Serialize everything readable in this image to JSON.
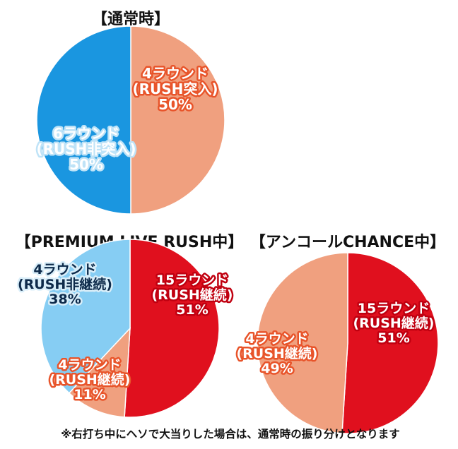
{
  "chart_data": [
    {
      "type": "pie",
      "title": "【通常時】",
      "slices": [
        {
          "lines": [
            "4ラウンド",
            "(RUSH突入)",
            "50%"
          ],
          "value": 50,
          "color": "#f0a07f",
          "outline": "#e8542a"
        },
        {
          "lines": [
            "6ラウンド",
            "(RUSH非突入)",
            "50%"
          ],
          "value": 50,
          "color": "#1a96e0",
          "outline": "#bfe3f7"
        }
      ]
    },
    {
      "type": "pie",
      "title": "【PREMIUM LIVE RUSH中】",
      "slices": [
        {
          "lines": [
            "15ラウンド",
            "(RUSH継続)",
            "51%"
          ],
          "value": 51,
          "color": "#e0101e",
          "outline": "#c00010"
        },
        {
          "lines": [
            "4ラウンド",
            "(RUSH継続)",
            "11%"
          ],
          "value": 11,
          "color": "#f0a07f",
          "outline": "#e8542a"
        },
        {
          "lines": [
            "4ラウンド",
            "(RUSH非継続)",
            "38%"
          ],
          "value": 38,
          "color": "#86cdf3",
          "outline": "#d9eef9"
        }
      ]
    },
    {
      "type": "pie",
      "title": "【アンコールCHANCE中】",
      "slices": [
        {
          "lines": [
            "15ラウンド",
            "(RUSH継続)",
            "51%"
          ],
          "value": 51,
          "color": "#e0101e",
          "outline": "#c00010"
        },
        {
          "lines": [
            "4ラウンド",
            "(RUSH継続)",
            "49%"
          ],
          "value": 49,
          "color": "#f0a07f",
          "outline": "#e8542a"
        }
      ]
    }
  ],
  "footnote": "※右打ち中にヘソで大当りした場合は、通常時の振り分けとなります"
}
